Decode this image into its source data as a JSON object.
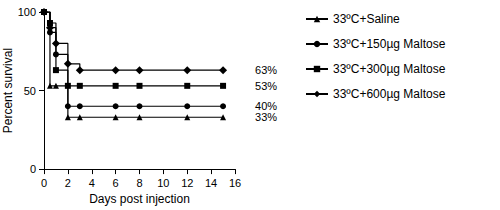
{
  "chart_data": {
    "type": "line",
    "x_label": "Days post injection",
    "y_label": "Percent survival",
    "x": [
      0,
      0.5,
      1,
      2,
      3,
      6,
      8,
      12,
      15
    ],
    "xlim": [
      0,
      16
    ],
    "xticks": [
      0,
      2,
      4,
      6,
      8,
      10,
      12,
      14,
      16
    ],
    "ylim": [
      0,
      100
    ],
    "yticks": [
      0,
      50,
      100
    ],
    "grid": false,
    "legend": "right",
    "line_style": "step",
    "series": [
      {
        "name": "33ºC+Saline",
        "color": "#000000",
        "marker": "triangle",
        "values": [
          100,
          53,
          53,
          33,
          33,
          33,
          33,
          33,
          33
        ],
        "end_label": "33%"
      },
      {
        "name": "33ºC+150µg Maltose",
        "color": "#000000",
        "marker": "circle",
        "values": [
          100,
          87,
          73,
          40,
          40,
          40,
          40,
          40,
          40
        ],
        "end_label": "40%"
      },
      {
        "name": "33ºC+300µg Maltose",
        "color": "#000000",
        "marker": "square",
        "values": [
          100,
          93,
          63,
          53,
          53,
          53,
          53,
          53,
          53
        ],
        "end_label": "53%"
      },
      {
        "name": "33ºC+600µg Maltose",
        "color": "#000000",
        "marker": "diamond",
        "values": [
          100,
          90,
          80,
          67,
          63,
          63,
          63,
          63,
          63
        ],
        "end_label": "63%"
      }
    ]
  }
}
